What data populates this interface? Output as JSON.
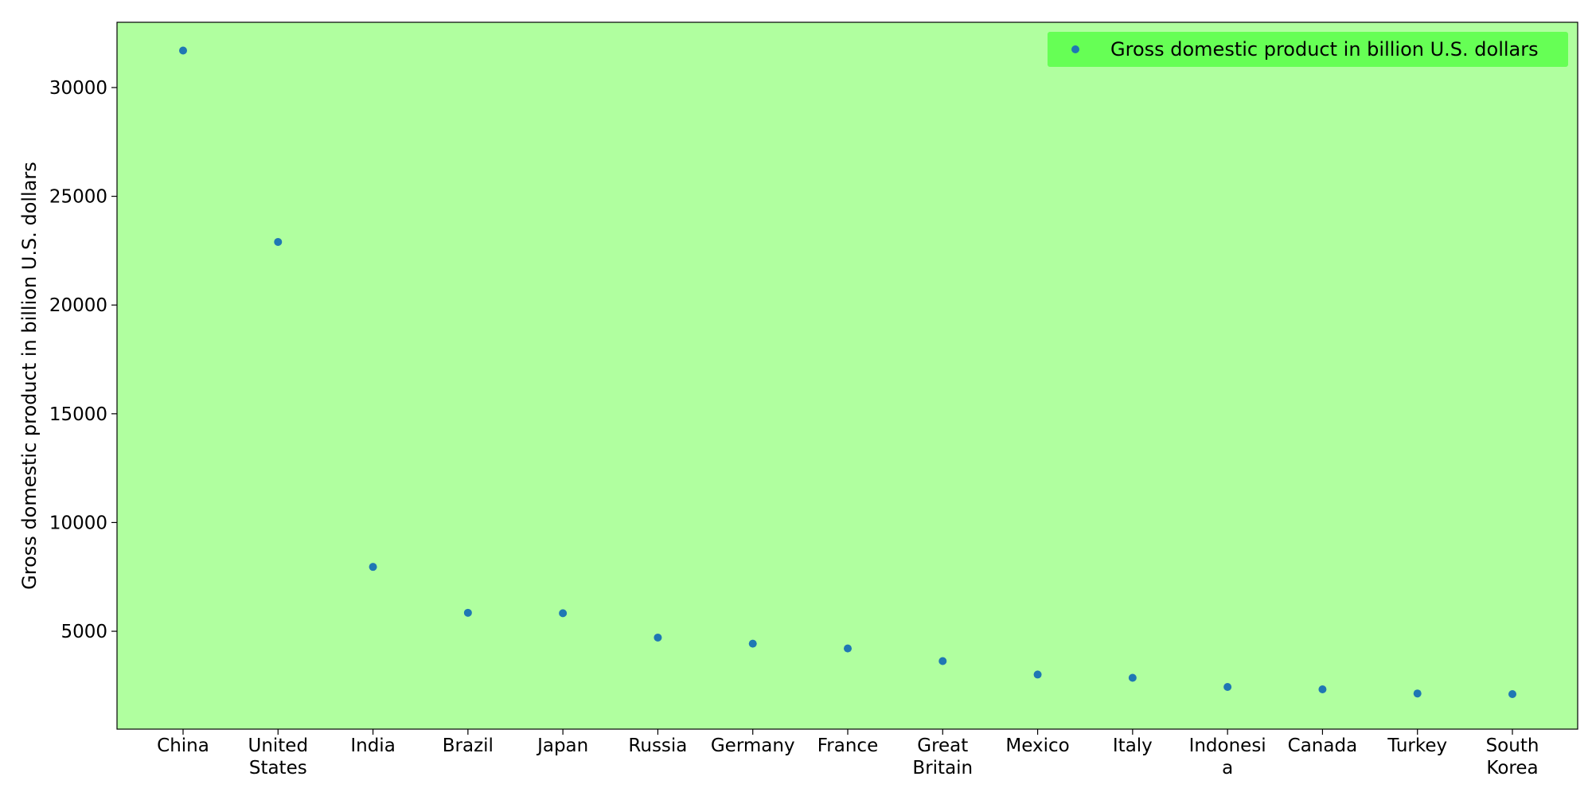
{
  "chart_data": {
    "type": "scatter",
    "title": "",
    "xlabel": "",
    "ylabel": "Gross domestic product in billion U.S. dollars",
    "categories": [
      [
        "China"
      ],
      [
        "United",
        "States"
      ],
      [
        "India"
      ],
      [
        "Brazil"
      ],
      [
        "Japan"
      ],
      [
        "Russia"
      ],
      [
        "Germany"
      ],
      [
        "France"
      ],
      [
        "Great",
        "Britain"
      ],
      [
        "Mexico"
      ],
      [
        "Italy"
      ],
      [
        "Indonesi",
        "a"
      ],
      [
        "Canada"
      ],
      [
        "Turkey"
      ],
      [
        "South",
        "Korea"
      ]
    ],
    "series": [
      {
        "name": "Gross domestic product in billion U.S. dollars",
        "values": [
          31700,
          22900,
          7960,
          5850,
          5830,
          4710,
          4430,
          4210,
          3630,
          3010,
          2860,
          2440,
          2330,
          2140,
          2110
        ]
      }
    ],
    "ylim": [
      500,
      33000
    ],
    "yticks": [
      5000,
      10000,
      15000,
      20000,
      25000,
      30000
    ],
    "grid": false,
    "legend_position": "top-right",
    "colors": {
      "plot_background": "#b0ff9f",
      "legend_background": "#66ff55",
      "marker": "#1f77b4",
      "axis": "#000000"
    }
  }
}
